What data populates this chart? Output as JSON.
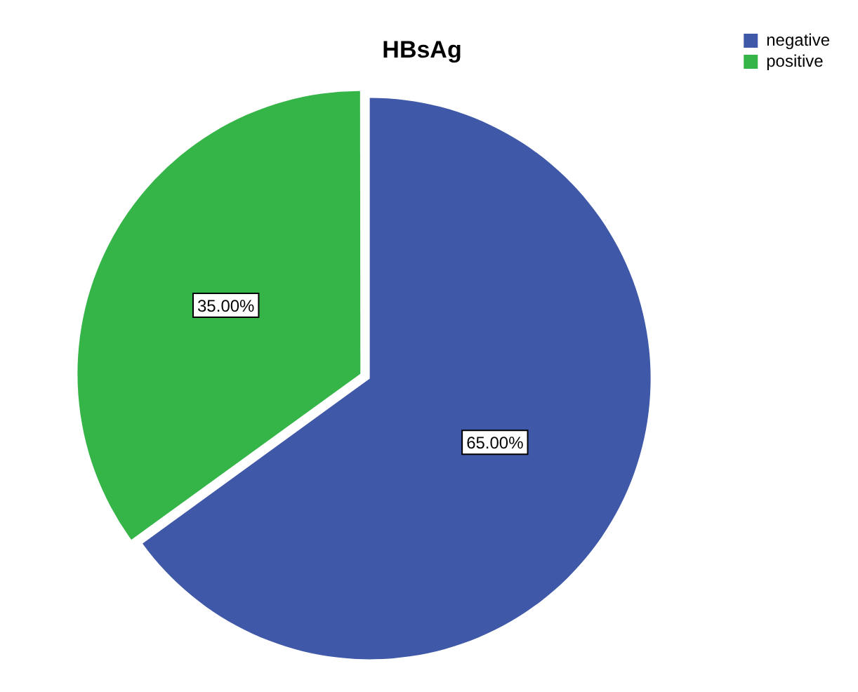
{
  "chart_data": {
    "type": "pie",
    "title": "HBsAg",
    "categories": [
      "negative",
      "positive"
    ],
    "values": [
      65,
      35
    ],
    "colors": [
      "#3f58a8",
      "#35b547"
    ],
    "value_labels": [
      "65.00%",
      "35.00%"
    ],
    "legend": "top right"
  }
}
